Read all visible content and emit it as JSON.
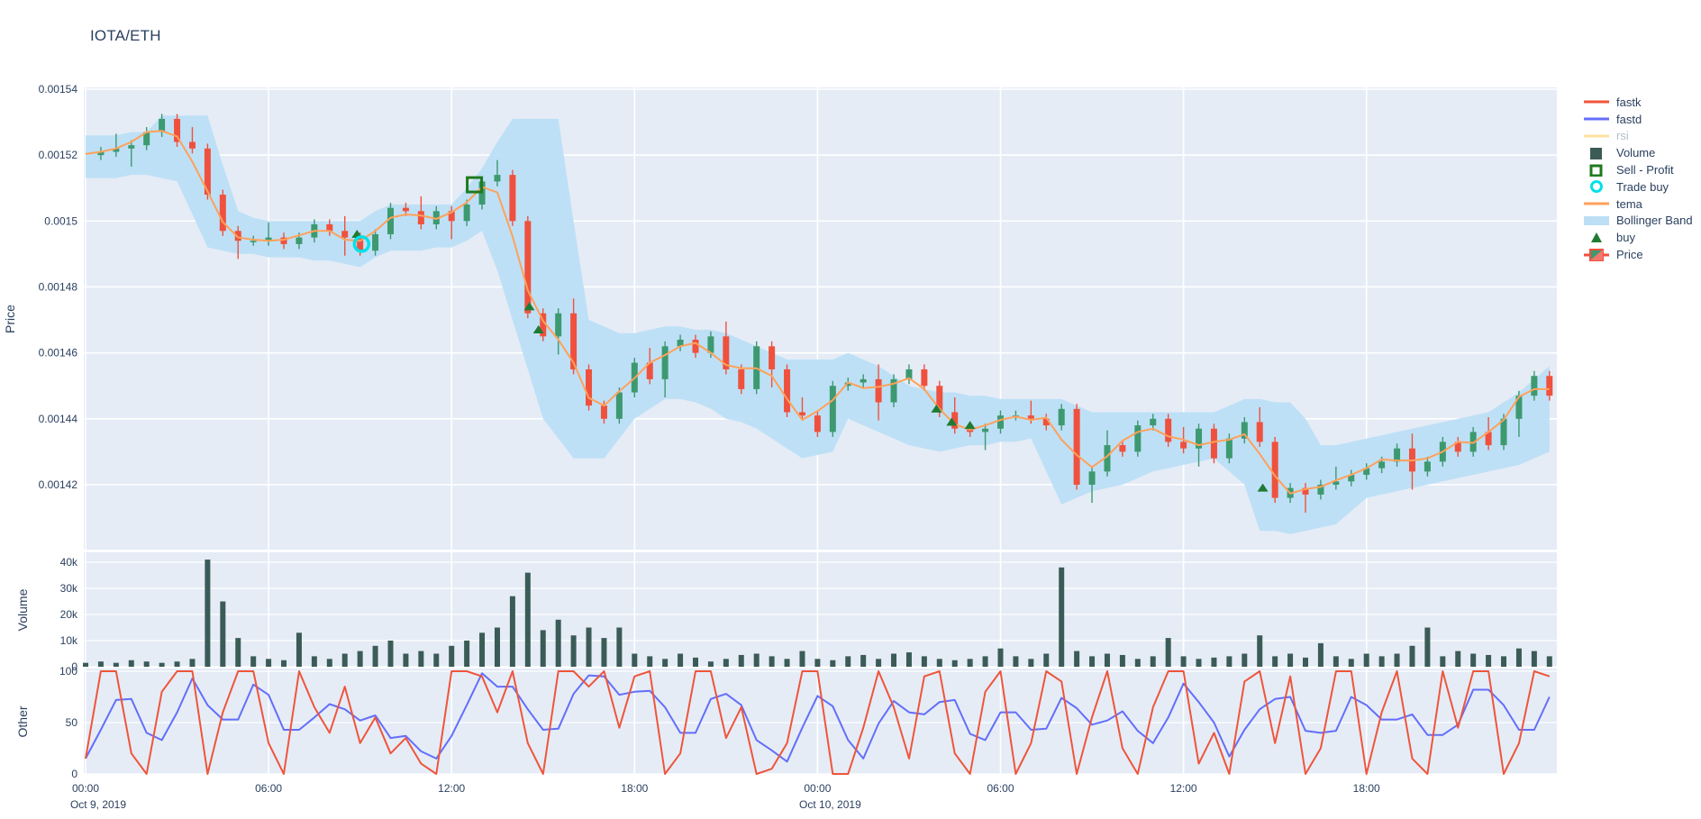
{
  "title": "IOTA/ETH",
  "colors": {
    "paper": "#ffffff",
    "plot_bg": "#E5ECF6",
    "grid": "#ffffff",
    "text": "#2a3f5f",
    "muted_text": "#b4bdcc",
    "candle_up": "#3D9970",
    "candle_down": "#EF513E",
    "volume_bar": "#3B5B57",
    "bollinger": "#BCDFF5",
    "tema": "#FFA15A",
    "fastk": "#EF553B",
    "fastd": "#636EFA",
    "rsi": "#FECB52",
    "buy_marker": "#1E7B34",
    "sell_profit_marker": "#1F7A1F",
    "trade_buy_marker": "#00E1E8"
  },
  "legend": {
    "items": [
      {
        "label": "fastk",
        "type": "line",
        "color": "#EF553B",
        "muted": false
      },
      {
        "label": "fastd",
        "type": "line",
        "color": "#636EFA",
        "muted": false
      },
      {
        "label": "rsi",
        "type": "line",
        "color": "#FEE2A0",
        "muted": true
      },
      {
        "label": "Volume",
        "type": "square",
        "color": "#3B5B57",
        "muted": false
      },
      {
        "label": "Sell - Profit",
        "type": "open-square",
        "color": "#1F7A1F",
        "muted": false
      },
      {
        "label": "Trade buy",
        "type": "open-circle",
        "color": "#00E1E8",
        "muted": false
      },
      {
        "label": "tema",
        "type": "line",
        "color": "#FFA15A",
        "muted": false
      },
      {
        "label": "Bollinger Band",
        "type": "band",
        "color": "#BCDFF5",
        "muted": false
      },
      {
        "label": "buy",
        "type": "triangle",
        "color": "#1E7B34",
        "muted": false
      },
      {
        "label": "Price",
        "type": "candle",
        "color": "#3D9970",
        "muted": false
      }
    ]
  },
  "axes": {
    "price": {
      "title": "Price",
      "ticks": [
        {
          "label": "0.00154",
          "v": 1540
        },
        {
          "label": "0.00152",
          "v": 1520
        },
        {
          "label": "0.0015",
          "v": 1500
        },
        {
          "label": "0.00148",
          "v": 1480
        },
        {
          "label": "0.00146",
          "v": 1460
        },
        {
          "label": "0.00144",
          "v": 1440
        },
        {
          "label": "0.00142",
          "v": 1420
        }
      ]
    },
    "volume": {
      "title": "Volume",
      "ticks": [
        {
          "label": "0",
          "v": 0
        },
        {
          "label": "10k",
          "v": 10
        },
        {
          "label": "20k",
          "v": 20
        },
        {
          "label": "30k",
          "v": 30
        },
        {
          "label": "40k",
          "v": 40
        }
      ]
    },
    "other": {
      "title": "Other",
      "ticks": [
        {
          "label": "0",
          "v": 0
        },
        {
          "label": "50",
          "v": 50
        },
        {
          "label": "100",
          "v": 100
        }
      ]
    },
    "x": {
      "ticks": [
        {
          "label": "00:00",
          "t": 0
        },
        {
          "label": "06:00",
          "t": 6
        },
        {
          "label": "12:00",
          "t": 12
        },
        {
          "label": "18:00",
          "t": 18
        },
        {
          "label": "00:00",
          "t": 24
        },
        {
          "label": "06:00",
          "t": 30
        },
        {
          "label": "12:00",
          "t": 36
        },
        {
          "label": "18:00",
          "t": 42
        }
      ],
      "dates": [
        {
          "label": "Oct 9, 2019",
          "t": 0
        },
        {
          "label": "Oct 10, 2019",
          "t": 24
        }
      ]
    }
  },
  "chart_data": [
    {
      "type": "candlestick",
      "name": "Price",
      "note": "IOTA/ETH price, Oct 9 00:00 - Oct 10 ~24:00 2019, values in ETH x 1e-6, sampled every 30 min",
      "interval_hours": 0.5,
      "start_hour": 0,
      "ylim_e6": [
        1400,
        1541
      ],
      "close_e6": [
        1520,
        1521,
        1522,
        1523,
        1527,
        1531,
        1524,
        1522,
        1508,
        1497,
        1494,
        1494,
        1495,
        1493,
        1495,
        1499,
        1497,
        1495,
        1491,
        1496,
        1504,
        1503,
        1499,
        1503,
        1500,
        1505,
        1512,
        1514,
        1500,
        1472,
        1465,
        1472,
        1455,
        1444,
        1440,
        1448,
        1457,
        1452,
        1462,
        1464,
        1460,
        1465,
        1455,
        1449,
        1462,
        1455,
        1442,
        1441,
        1436,
        1450,
        1451,
        1452,
        1445,
        1452,
        1455,
        1450,
        1442,
        1437,
        1436,
        1437,
        1441,
        1441,
        1440,
        1438,
        1443,
        1420,
        1424,
        1432,
        1430,
        1438,
        1440,
        1433,
        1431,
        1437,
        1428,
        1434,
        1439,
        1433,
        1416,
        1419,
        1417,
        1420,
        1421,
        1423,
        1425,
        1427,
        1431,
        1424,
        1427,
        1433,
        1430,
        1436,
        1432,
        1440,
        1447,
        1453,
        1447
      ],
      "bollinger_upper_e6": [
        1526,
        1526,
        1526,
        1527,
        1527,
        1532,
        1532,
        1532,
        1532,
        1517,
        1503,
        1501,
        1500,
        1500,
        1500,
        1500,
        1500,
        1500,
        1500,
        1503,
        1505,
        1505,
        1505,
        1505,
        1505,
        1510,
        1516,
        1524,
        1531,
        1531,
        1531,
        1531,
        1500,
        1470,
        1468,
        1466,
        1466,
        1467,
        1468,
        1468,
        1467,
        1467,
        1466,
        1464,
        1462,
        1460,
        1458,
        1458,
        1458,
        1458,
        1460,
        1458,
        1456,
        1453,
        1450,
        1449,
        1448,
        1448,
        1447,
        1447,
        1446,
        1446,
        1446,
        1446,
        1446,
        1444,
        1442,
        1442,
        1442,
        1442,
        1442,
        1442,
        1442,
        1442,
        1442,
        1444,
        1446,
        1446,
        1445,
        1445,
        1440,
        1432,
        1432,
        1433,
        1434,
        1435,
        1436,
        1437,
        1438,
        1439,
        1440,
        1441,
        1442,
        1445,
        1448,
        1452,
        1456
      ],
      "bollinger_lower_e6": [
        1513,
        1513,
        1513,
        1514,
        1514,
        1513,
        1512,
        1502,
        1492,
        1491,
        1490,
        1490,
        1489,
        1489,
        1489,
        1488,
        1488,
        1487,
        1486,
        1489,
        1491,
        1491,
        1491,
        1492,
        1492,
        1494,
        1497,
        1485,
        1470,
        1455,
        1440,
        1434,
        1428,
        1428,
        1428,
        1434,
        1440,
        1443,
        1446,
        1446,
        1445,
        1443,
        1440,
        1439,
        1437,
        1434,
        1431,
        1428,
        1429,
        1430,
        1440,
        1438,
        1436,
        1434,
        1432,
        1431,
        1430,
        1431,
        1432,
        1432,
        1433,
        1433,
        1434,
        1424,
        1414,
        1416,
        1418,
        1419,
        1420,
        1422,
        1424,
        1425,
        1426,
        1427,
        1428,
        1424,
        1420,
        1406,
        1406,
        1405,
        1406,
        1407,
        1408,
        1412,
        1416,
        1417,
        1418,
        1419,
        1420,
        1421,
        1422,
        1423,
        1424,
        1425,
        1426,
        1428,
        1430
      ],
      "markers": {
        "buy": [
          {
            "t": 8.9,
            "p_e6": 1496
          },
          {
            "t": 14.55,
            "p_e6": 1474
          },
          {
            "t": 14.85,
            "p_e6": 1467
          },
          {
            "t": 27.9,
            "p_e6": 1443
          },
          {
            "t": 28.4,
            "p_e6": 1439
          },
          {
            "t": 29.0,
            "p_e6": 1438
          },
          {
            "t": 38.6,
            "p_e6": 1419
          }
        ],
        "sell_profit": [
          {
            "t": 12.75,
            "p_e6": 1511
          }
        ],
        "trade_buy": [
          {
            "t": 9.05,
            "p_e6": 1493
          }
        ]
      }
    },
    {
      "type": "bar",
      "name": "Volume",
      "interval_hours": 0.5,
      "ylim_k": [
        0,
        43
      ],
      "values_k": [
        1.5,
        2,
        1.5,
        2.5,
        2,
        1.5,
        2,
        3,
        41,
        25,
        11,
        4,
        3,
        2.5,
        13,
        4,
        3,
        5,
        6,
        8,
        10,
        5,
        6,
        5,
        8,
        10,
        13,
        15,
        27,
        36,
        14,
        18,
        12,
        15,
        11,
        15,
        5,
        4,
        3,
        5,
        3.5,
        2,
        3,
        4.5,
        5,
        4,
        3,
        6,
        3,
        2.5,
        4,
        4.5,
        3,
        5,
        5.5,
        4,
        3,
        2.5,
        3,
        4,
        7,
        4,
        3,
        5,
        38,
        6,
        4,
        5,
        4.5,
        3,
        4,
        11,
        4,
        3,
        3.5,
        4,
        5,
        12,
        4,
        5,
        3.5,
        9,
        4,
        3,
        5,
        4,
        5,
        8,
        15,
        4,
        6,
        5,
        4.5,
        4,
        7,
        6,
        4
      ]
    },
    {
      "type": "line",
      "name": "Other",
      "interval_hours": 0.5,
      "ylim": [
        0,
        100
      ],
      "series": [
        {
          "name": "fastk",
          "values": [
            15,
            100,
            100,
            20,
            0,
            80,
            100,
            100,
            0,
            60,
            100,
            100,
            30,
            0,
            100,
            65,
            40,
            85,
            30,
            55,
            20,
            35,
            10,
            0,
            100,
            100,
            95,
            60,
            100,
            30,
            0,
            100,
            100,
            85,
            100,
            45,
            95,
            100,
            0,
            20,
            100,
            100,
            35,
            65,
            0,
            5,
            30,
            100,
            100,
            0,
            0,
            45,
            100,
            65,
            15,
            95,
            100,
            20,
            0,
            80,
            100,
            0,
            30,
            100,
            90,
            0,
            55,
            100,
            25,
            0,
            65,
            100,
            100,
            10,
            40,
            0,
            90,
            100,
            30,
            95,
            0,
            25,
            100,
            100,
            0,
            60,
            100,
            15,
            0,
            100,
            45,
            100,
            100,
            0,
            30,
            100,
            95
          ]
        },
        {
          "name": "fastd",
          "values": [
            15,
            43,
            72,
            73,
            40,
            33,
            60,
            93,
            67,
            53,
            53,
            87,
            77,
            43,
            43,
            55,
            68,
            63,
            52,
            57,
            35,
            37,
            22,
            15,
            37,
            67,
            98,
            85,
            85,
            63,
            43,
            44,
            78,
            96,
            95,
            77,
            80,
            81,
            65,
            40,
            40,
            73,
            78,
            67,
            33,
            23,
            12,
            45,
            76,
            66,
            33,
            15,
            49,
            71,
            60,
            58,
            70,
            72,
            39,
            33,
            60,
            60,
            43,
            44,
            74,
            64,
            48,
            52,
            61,
            42,
            30,
            55,
            88,
            70,
            50,
            17,
            43,
            63,
            73,
            75,
            42,
            40,
            42,
            75,
            67,
            53,
            53,
            58,
            38,
            38,
            48,
            82,
            82,
            67,
            43,
            43,
            75
          ]
        }
      ]
    }
  ]
}
